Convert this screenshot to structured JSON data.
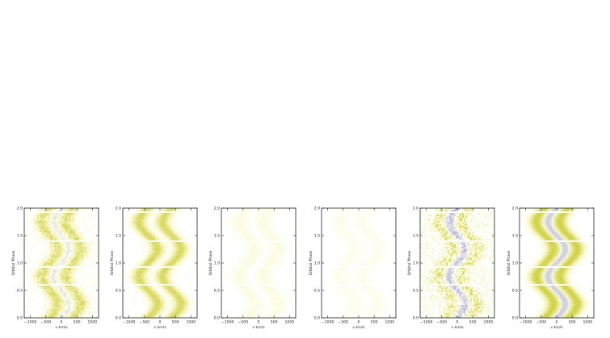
{
  "chart_data": [
    {
      "type": "heatmap",
      "panel": 1,
      "xlabel": "v km/s",
      "ylabel": "Orbital Phase",
      "xlim": [
        -1200,
        1200
      ],
      "ylim": [
        0.0,
        2.0
      ],
      "x_ticks": [
        -1000,
        -500,
        0,
        500,
        1000
      ],
      "x_tick_labels": [
        "−1000",
        "−500",
        "0",
        "500",
        "1000"
      ],
      "y_ticks": [
        0.0,
        0.5,
        1.0,
        1.5,
        2.0
      ],
      "y_tick_labels": [
        "0.0",
        "0.5",
        "1.0",
        "1.5",
        "2.0"
      ],
      "colormap": [
        "#ffffff",
        "#fdfde8",
        "#f1f0b0",
        "#cccf3a",
        "#b3b3df"
      ],
      "s_wave_amplitude_kms": 250,
      "emission_strength": 0.75,
      "absorption_strength": 0.45,
      "noise": 0.45
    },
    {
      "type": "heatmap",
      "panel": 2,
      "xlabel": "v km/s",
      "ylabel": "Orbital Phase",
      "xlim": [
        -1200,
        1200
      ],
      "ylim": [
        0.0,
        2.0
      ],
      "x_ticks": [
        -1000,
        -500,
        0,
        500,
        1000
      ],
      "x_tick_labels": [
        "−1000",
        "−500",
        "0",
        "500",
        "1000"
      ],
      "y_ticks": [
        0.0,
        0.5,
        1.0,
        1.5,
        2.0
      ],
      "y_tick_labels": [
        "0.0",
        "0.5",
        "1.0",
        "1.5",
        "2.0"
      ],
      "colormap": [
        "#ffffff",
        "#fdfde8",
        "#f1f0b0",
        "#cccf3a",
        "#b3b3df"
      ],
      "s_wave_amplitude_kms": 300,
      "emission_strength": 0.85,
      "absorption_strength": 0.12,
      "noise": 0.15
    },
    {
      "type": "heatmap",
      "panel": 3,
      "xlabel": "v km/s",
      "ylabel": "Orbital Phase",
      "xlim": [
        -1200,
        1200
      ],
      "ylim": [
        0.0,
        2.0
      ],
      "x_ticks": [
        -1000,
        -500,
        0,
        500,
        1000
      ],
      "x_tick_labels": [
        "−1000",
        "−500",
        "0",
        "500",
        "1000"
      ],
      "y_ticks": [
        0.0,
        0.5,
        1.0,
        1.5,
        2.0
      ],
      "y_tick_labels": [
        "0.0",
        "0.5",
        "1.0",
        "1.5",
        "2.0"
      ],
      "colormap": [
        "#ffffff",
        "#fdfde8",
        "#f1f0b0",
        "#cccf3a",
        "#b3b3df"
      ],
      "s_wave_amplitude_kms": 250,
      "emission_strength": 0.22,
      "absorption_strength": 0.0,
      "noise": 0.12
    },
    {
      "type": "heatmap",
      "panel": 4,
      "xlabel": "v km/s",
      "ylabel": "Orbital Phase",
      "xlim": [
        -1200,
        1200
      ],
      "ylim": [
        0.0,
        2.0
      ],
      "x_ticks": [
        -1000,
        -500,
        0,
        500,
        1000
      ],
      "x_tick_labels": [
        "−1000",
        "−500",
        "0",
        "500",
        "1000"
      ],
      "y_ticks": [
        0.0,
        0.5,
        1.0,
        1.5,
        2.0
      ],
      "y_tick_labels": [
        "0.0",
        "0.5",
        "1.0",
        "1.5",
        "2.0"
      ],
      "colormap": [
        "#ffffff",
        "#fdfde8",
        "#f1f0b0",
        "#cccf3a",
        "#b3b3df"
      ],
      "s_wave_amplitude_kms": 250,
      "emission_strength": 0.14,
      "absorption_strength": 0.0,
      "noise": 0.06
    },
    {
      "type": "heatmap",
      "panel": 5,
      "xlabel": "v km/s",
      "ylabel": "Orbital Phase",
      "xlim": [
        -1200,
        1200
      ],
      "ylim": [
        0.0,
        2.0
      ],
      "x_ticks": [
        -1000,
        -500,
        0,
        500,
        1000
      ],
      "x_tick_labels": [
        "−1000",
        "−500",
        "0",
        "500",
        "1000"
      ],
      "y_ticks": [
        0.0,
        0.5,
        1.0,
        1.5,
        2.0
      ],
      "y_tick_labels": [
        "0.0",
        "0.5",
        "1.0",
        "1.5",
        "2.0"
      ],
      "colormap": [
        "#ffffff",
        "#fdfde8",
        "#f1f0b0",
        "#cccf3a",
        "#b3b3df"
      ],
      "s_wave_amplitude_kms": 250,
      "emission_strength": 0.55,
      "absorption_strength": 0.7,
      "noise": 0.95
    },
    {
      "type": "heatmap",
      "panel": 6,
      "xlabel": "v km/s",
      "ylabel": "Orbital Phase",
      "xlim": [
        -1200,
        1200
      ],
      "ylim": [
        0.0,
        2.0
      ],
      "x_ticks": [
        -1000,
        -500,
        0,
        500,
        1000
      ],
      "x_tick_labels": [
        "−1000",
        "−500",
        "0",
        "500",
        "1000"
      ],
      "y_ticks": [
        0.0,
        0.5,
        1.0,
        1.5,
        2.0
      ],
      "y_tick_labels": [
        "0.0",
        "0.5",
        "1.0",
        "1.5",
        "2.0"
      ],
      "colormap": [
        "#ffffff",
        "#fdfde8",
        "#f1f0b0",
        "#cccf3a",
        "#b3b3df"
      ],
      "s_wave_amplitude_kms": 280,
      "emission_strength": 0.95,
      "absorption_strength": 0.7,
      "noise": 0.1
    }
  ]
}
